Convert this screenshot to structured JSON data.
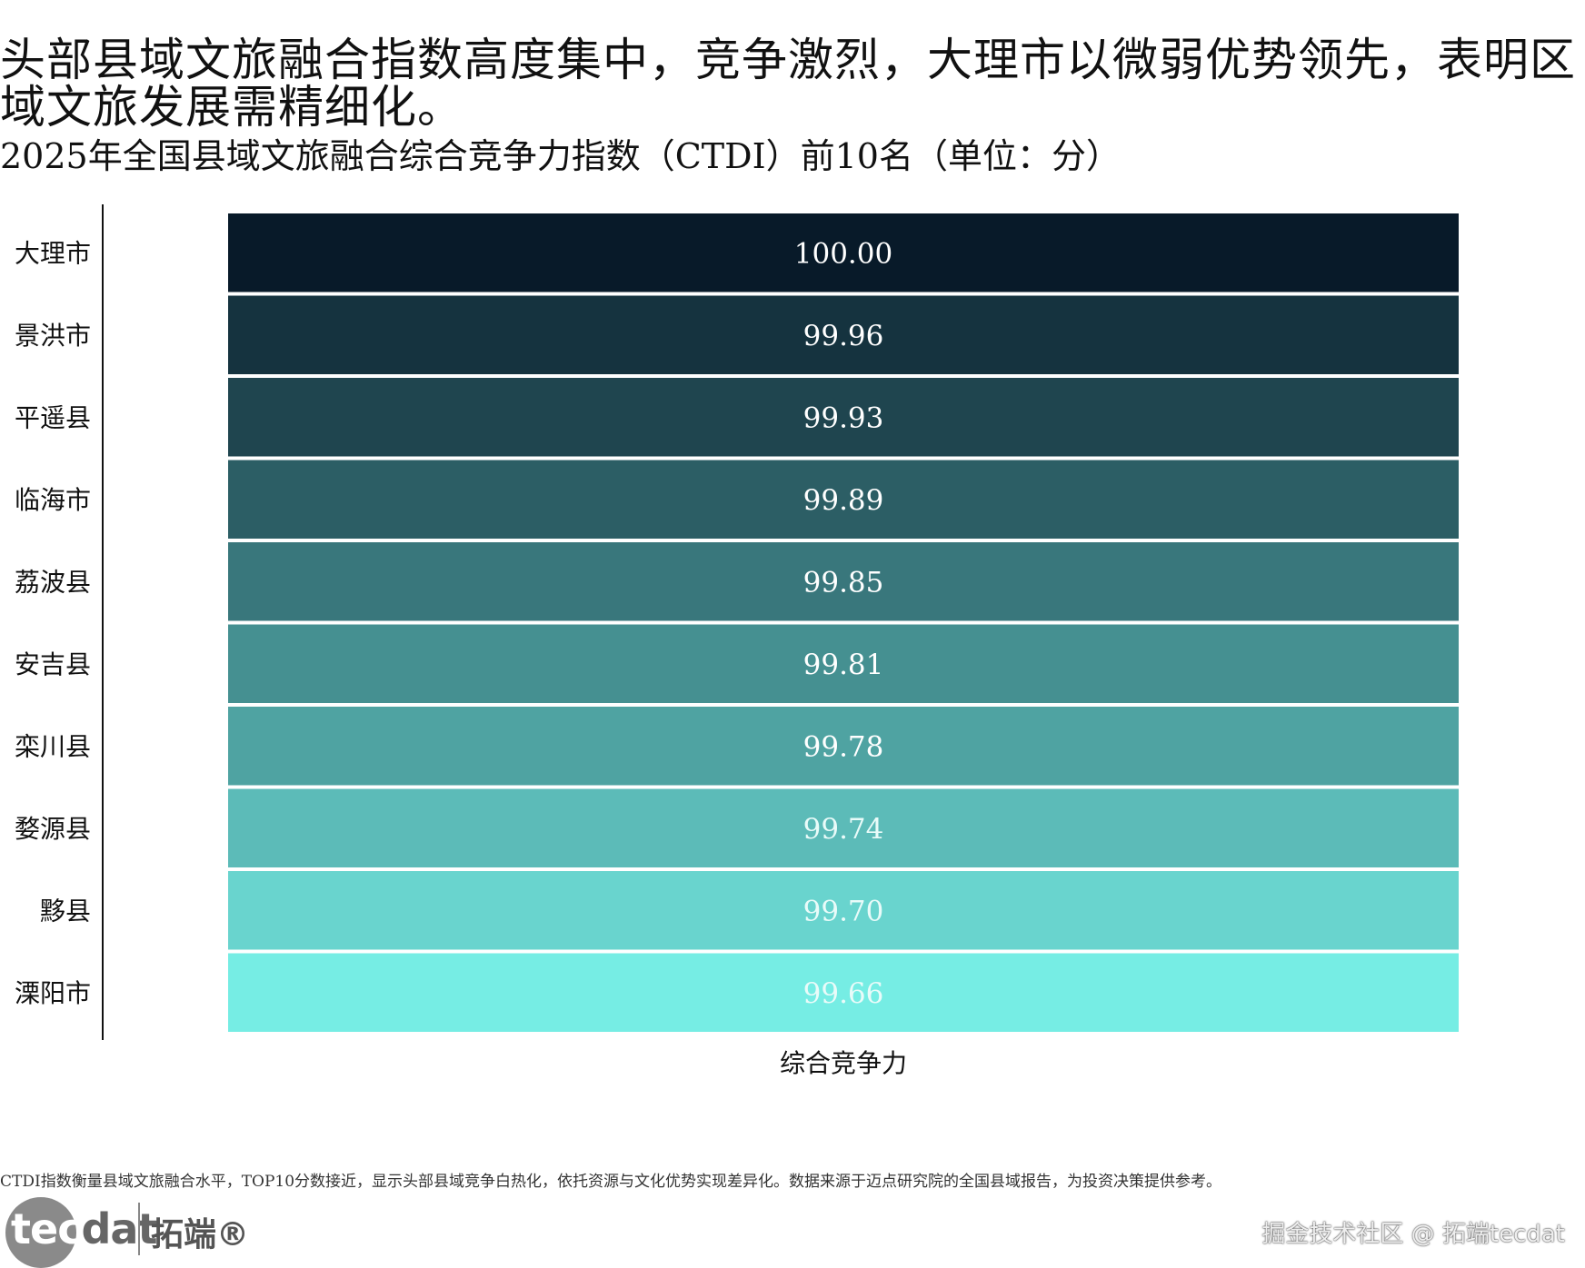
{
  "title": "头部县域文旅融合指数高度集中，竞争激烈，大理市以微弱优势领先，表明区域文旅发展需精细化。",
  "chart_data": {
    "type": "heatmap",
    "subtitle": "2025年全国县域文旅融合综合竞争力指数（CTDI）前10名（单位：分）",
    "xlabel": "综合竞争力",
    "categories": [
      "大理市",
      "景洪市",
      "平遥县",
      "临海市",
      "荔波县",
      "安吉县",
      "栾川县",
      "婺源县",
      "黟县",
      "溧阳市"
    ],
    "values": [
      100.0,
      99.96,
      99.93,
      99.89,
      99.85,
      99.81,
      99.78,
      99.74,
      99.7,
      99.66
    ],
    "value_labels": [
      "100.00",
      "99.96",
      "99.93",
      "99.89",
      "99.85",
      "99.81",
      "99.78",
      "99.74",
      "99.70",
      "99.66"
    ],
    "colormap": {
      "high": "#081a29",
      "low": "#76ede4"
    },
    "label_colors": {
      "dark_cell": "#ffffff",
      "light_cell": "#e9fbf9"
    }
  },
  "footnote": "CTDI指数衡量县域文旅融合水平，TOP10分数接近，显示头部县域竞争白热化，依托资源与文化优势实现差异化。数据来源于迈点研究院的全国县域报告，为投资决策提供参考。",
  "logo": {
    "text_tec": "tec",
    "text_dat": "dat",
    "text_cn": "拓端®"
  },
  "watermark": "掘金技术社区 @ 拓端tecdat"
}
